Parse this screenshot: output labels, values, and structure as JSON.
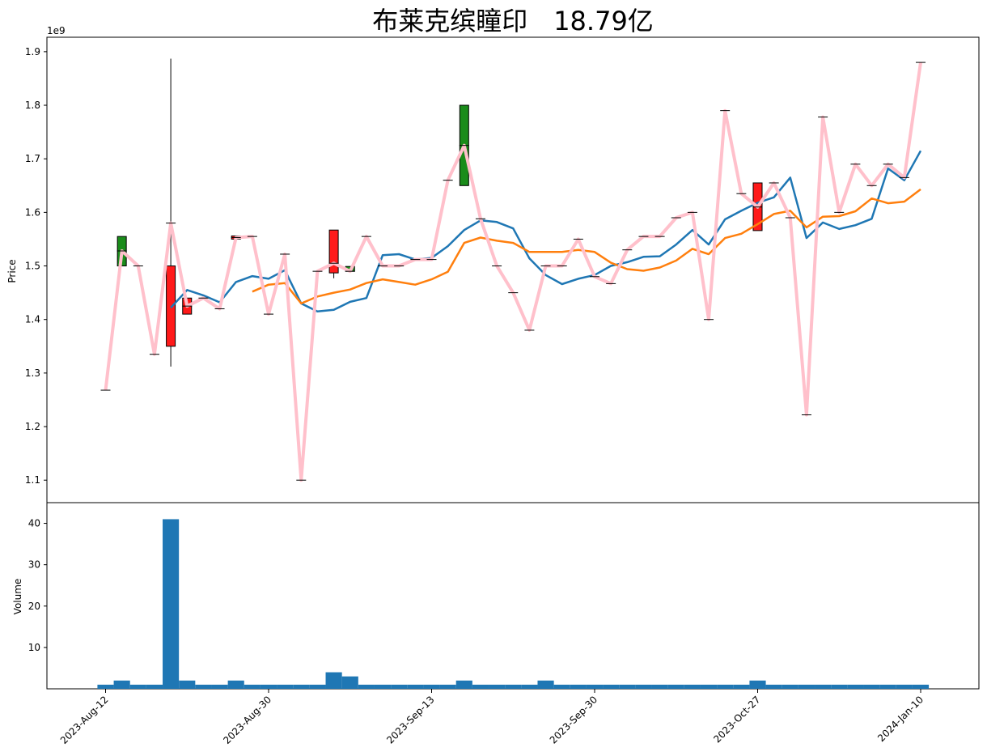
{
  "chart_data": {
    "title": "布莱克缤瞳印　18.79亿",
    "type": "candlestick",
    "price_panel": {
      "ylabel": "Price",
      "offset_text": "1e9",
      "ylim": [
        1.058,
        1.927
      ],
      "yticks": [
        1.1,
        1.2,
        1.3,
        1.4,
        1.5,
        1.6,
        1.7,
        1.8,
        1.9
      ],
      "ytick_labels": [
        "1.1",
        "1.2",
        "1.3",
        "1.4",
        "1.5",
        "1.6",
        "1.7",
        "1.8",
        "1.9"
      ],
      "grid": false
    },
    "volume_panel": {
      "ylabel": "Volume",
      "ylim": [
        0,
        45
      ],
      "yticks": [
        10,
        20,
        30,
        40
      ],
      "ytick_labels": [
        "10",
        "20",
        "30",
        "40"
      ]
    },
    "x_ticks": [
      {
        "index": 0,
        "label": "2023-Aug-12"
      },
      {
        "index": 10,
        "label": "2023-Aug-30"
      },
      {
        "index": 20,
        "label": "2023-Sep-13"
      },
      {
        "index": 30,
        "label": "2023-Sep-30"
      },
      {
        "index": 40,
        "label": "2023-Oct-27"
      },
      {
        "index": 50,
        "label": "2024-Jan-10"
      }
    ],
    "colors": {
      "up": "#1a8c1a",
      "down": "#ff1a1a",
      "close_line": "#ffc0cb",
      "ma_short": "#1f77b4",
      "ma_long": "#ff7f0e",
      "volume": "#1f77b4"
    },
    "series": [
      {
        "name": "close",
        "values": [
          1.268,
          1.528,
          1.5,
          1.335,
          1.58,
          1.425,
          1.44,
          1.42,
          1.553,
          1.555,
          1.41,
          1.522,
          1.1,
          1.49,
          1.505,
          1.49,
          1.555,
          1.5,
          1.5,
          1.512,
          1.512,
          1.66,
          1.725,
          1.588,
          1.5,
          1.45,
          1.38,
          1.5,
          1.5,
          1.55,
          1.48,
          1.467,
          1.53,
          1.555,
          1.555,
          1.59,
          1.6,
          1.4,
          1.79,
          1.635,
          1.61,
          1.655,
          1.59,
          1.222,
          1.778,
          1.6,
          1.69,
          1.65,
          1.69,
          1.665,
          1.88
        ]
      },
      {
        "name": "ma_short",
        "values": [
          null,
          null,
          null,
          null,
          1.422,
          1.455,
          1.445,
          1.432,
          1.47,
          1.481,
          1.476,
          1.492,
          1.43,
          1.415,
          1.418,
          1.433,
          1.44,
          1.52,
          1.522,
          1.512,
          1.515,
          1.537,
          1.567,
          1.585,
          1.582,
          1.57,
          1.514,
          1.483,
          1.466,
          1.476,
          1.483,
          1.5,
          1.507,
          1.517,
          1.518,
          1.54,
          1.567,
          1.54,
          1.587,
          1.603,
          1.618,
          1.628,
          1.665,
          1.552,
          1.581,
          1.569,
          1.576,
          1.588,
          1.682,
          1.66,
          1.715
        ]
      },
      {
        "name": "ma_long",
        "values": [
          null,
          null,
          null,
          null,
          null,
          null,
          null,
          null,
          null,
          1.452,
          1.465,
          1.468,
          1.43,
          1.443,
          1.45,
          1.456,
          1.468,
          1.475,
          1.47,
          1.465,
          1.475,
          1.489,
          1.543,
          1.553,
          1.547,
          1.543,
          1.526,
          1.526,
          1.526,
          1.53,
          1.526,
          1.506,
          1.494,
          1.491,
          1.497,
          1.51,
          1.532,
          1.522,
          1.552,
          1.56,
          1.578,
          1.597,
          1.603,
          1.572,
          1.592,
          1.593,
          1.602,
          1.626,
          1.617,
          1.62,
          1.643
        ]
      },
      {
        "name": "volume",
        "values": [
          1,
          2,
          1,
          1,
          41,
          2,
          1,
          1,
          2,
          1,
          1,
          1,
          1,
          1,
          4,
          3,
          1,
          1,
          1,
          1,
          1,
          1,
          2,
          1,
          1,
          1,
          1,
          2,
          1,
          1,
          1,
          1,
          1,
          1,
          1,
          1,
          1,
          1,
          1,
          1,
          2,
          1,
          1,
          1,
          1,
          1,
          1,
          1,
          1,
          1,
          1
        ]
      }
    ],
    "candles": [
      {
        "index": 1,
        "open": 1.5,
        "close": 1.555,
        "high": 1.555,
        "low": 1.5
      },
      {
        "index": 4,
        "open": 1.5,
        "close": 1.35,
        "high": 1.887,
        "low": 1.312
      },
      {
        "index": 5,
        "open": 1.44,
        "close": 1.41,
        "high": 1.44,
        "low": 1.41
      },
      {
        "index": 8,
        "open": 1.556,
        "close": 1.55,
        "high": 1.556,
        "low": 1.55
      },
      {
        "index": 14,
        "open": 1.567,
        "close": 1.487,
        "high": 1.567,
        "low": 1.477
      },
      {
        "index": 15,
        "open": 1.49,
        "close": 1.499,
        "high": 1.499,
        "low": 1.49
      },
      {
        "index": 22,
        "open": 1.65,
        "close": 1.8,
        "high": 1.8,
        "low": 1.65
      },
      {
        "index": 40,
        "open": 1.655,
        "close": 1.566,
        "high": 1.655,
        "low": 1.566
      }
    ]
  }
}
